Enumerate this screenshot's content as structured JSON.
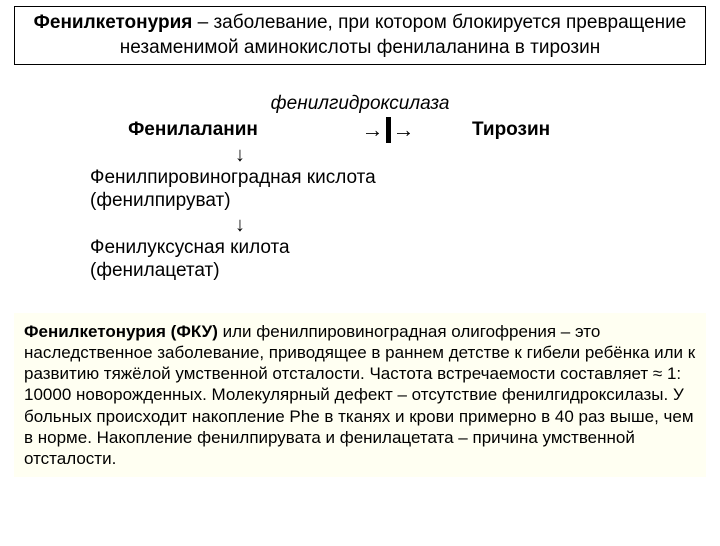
{
  "header": {
    "bold_term": "Фенилкетонурия",
    "rest": " – заболевание, при котором блокируется превращение незаменимой аминокислоты фенилаланина в тирозин"
  },
  "enzyme": "фенилгидроксилаза",
  "reaction": {
    "substrate": "Фенилаланин",
    "arrow_left": "→",
    "arrow_right": "→",
    "product": "Тирозин"
  },
  "pathway": {
    "down": "↓",
    "step1": "Фенилпировиноградная кислота (фенилпируват)",
    "step2": "Фенилуксусная килота (фенилацетат)"
  },
  "description": {
    "bold_term": "Фенилкетонурия (ФКУ)",
    "body": " или фенилпировиноградная олигофрения – это наследственное заболевание, приводящее в раннем детстве к гибели ребёнка или к развитию тяжёлой умственной отсталости. Частота встречаемости составляет ≈ 1: 10000 новорожденных. Молекулярный дефект – отсутствие фенилгидроксилазы. У больных происходит накопление Phe в тканях и крови примерно в 40 раз выше, чем в норме. Накопление фенилпирувата и фенилацетата – причина умственной отсталости."
  }
}
